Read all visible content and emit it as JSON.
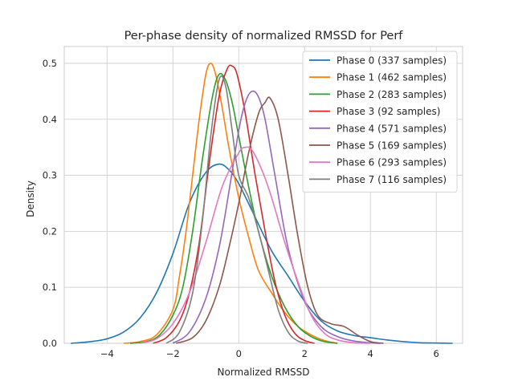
{
  "chart_data": {
    "type": "line",
    "title": "Per-phase density of normalized RMSSD for Perf",
    "xlabel": "Normalized RMSSD",
    "ylabel": "Density",
    "xlim": [
      -5.3,
      6.8
    ],
    "ylim": [
      0,
      0.53
    ],
    "xticks": [
      -4,
      -2,
      0,
      2,
      4,
      6
    ],
    "xtick_labels": [
      "−4",
      "−2",
      "0",
      "2",
      "4",
      "6"
    ],
    "yticks": [
      0.0,
      0.1,
      0.2,
      0.3,
      0.4,
      0.5
    ],
    "ytick_labels": [
      "0.0",
      "0.1",
      "0.2",
      "0.3",
      "0.4",
      "0.5"
    ],
    "grid": true,
    "legend_position": "top-right",
    "series": [
      {
        "name": "Phase 0 (337 samples)",
        "color": "#1f77b4",
        "x": [
          -5.1,
          -4.5,
          -4.0,
          -3.5,
          -3.0,
          -2.5,
          -2.0,
          -1.5,
          -1.0,
          -0.6,
          -0.3,
          0.0,
          0.5,
          1.0,
          1.5,
          2.0,
          2.5,
          3.0,
          3.5,
          4.0,
          4.5,
          5.0,
          5.5,
          6.0,
          6.5
        ],
        "y": [
          0.0,
          0.003,
          0.008,
          0.02,
          0.045,
          0.09,
          0.16,
          0.25,
          0.305,
          0.32,
          0.31,
          0.285,
          0.225,
          0.165,
          0.12,
          0.075,
          0.04,
          0.022,
          0.014,
          0.01,
          0.006,
          0.003,
          0.001,
          0.0005,
          0.0
        ]
      },
      {
        "name": "Phase 1 (462 samples)",
        "color": "#ff7f0e",
        "x": [
          -3.5,
          -3.0,
          -2.5,
          -2.0,
          -1.8,
          -1.6,
          -1.4,
          -1.2,
          -1.0,
          -0.85,
          -0.7,
          -0.5,
          -0.3,
          0.0,
          0.3,
          0.6,
          1.0,
          1.4,
          1.8,
          2.2,
          2.6,
          3.0
        ],
        "y": [
          0.0,
          0.003,
          0.015,
          0.06,
          0.12,
          0.2,
          0.3,
          0.4,
          0.48,
          0.5,
          0.48,
          0.42,
          0.35,
          0.26,
          0.19,
          0.13,
          0.09,
          0.055,
          0.03,
          0.015,
          0.005,
          0.0
        ]
      },
      {
        "name": "Phase 2 (283 samples)",
        "color": "#2ca02c",
        "x": [
          -3.3,
          -2.8,
          -2.4,
          -2.0,
          -1.7,
          -1.4,
          -1.1,
          -0.8,
          -0.6,
          -0.4,
          -0.2,
          0.0,
          0.3,
          0.6,
          1.0,
          1.4,
          1.8,
          2.2,
          2.6,
          3.0
        ],
        "y": [
          0.0,
          0.003,
          0.015,
          0.05,
          0.1,
          0.2,
          0.33,
          0.44,
          0.48,
          0.47,
          0.43,
          0.37,
          0.28,
          0.2,
          0.12,
          0.065,
          0.03,
          0.012,
          0.003,
          0.0
        ]
      },
      {
        "name": "Phase 3 (92 samples)",
        "color": "#d62728",
        "x": [
          -2.6,
          -2.2,
          -1.8,
          -1.5,
          -1.2,
          -0.9,
          -0.6,
          -0.35,
          -0.2,
          -0.05,
          0.2,
          0.5,
          0.8,
          1.1,
          1.4,
          1.7,
          2.0,
          2.3
        ],
        "y": [
          0.0,
          0.01,
          0.04,
          0.09,
          0.18,
          0.32,
          0.44,
          0.49,
          0.495,
          0.48,
          0.41,
          0.3,
          0.2,
          0.11,
          0.05,
          0.018,
          0.005,
          0.0
        ]
      },
      {
        "name": "Phase 4 (571 samples)",
        "color": "#9467bd",
        "x": [
          -2.0,
          -1.5,
          -1.0,
          -0.6,
          -0.3,
          0.0,
          0.2,
          0.4,
          0.6,
          0.8,
          1.1,
          1.5,
          2.0,
          2.5,
          3.0,
          3.5,
          4.0,
          4.3
        ],
        "y": [
          0.0,
          0.02,
          0.08,
          0.17,
          0.27,
          0.38,
          0.43,
          0.45,
          0.44,
          0.4,
          0.3,
          0.17,
          0.075,
          0.03,
          0.012,
          0.004,
          0.001,
          0.0
        ]
      },
      {
        "name": "Phase 5 (169 samples)",
        "color": "#8c564b",
        "x": [
          -1.9,
          -1.4,
          -1.0,
          -0.6,
          -0.3,
          0.0,
          0.3,
          0.6,
          0.8,
          0.95,
          1.2,
          1.5,
          1.8,
          2.1,
          2.4,
          2.8,
          3.2,
          3.6,
          4.0,
          4.4
        ],
        "y": [
          0.0,
          0.01,
          0.04,
          0.1,
          0.17,
          0.25,
          0.34,
          0.41,
          0.43,
          0.438,
          0.4,
          0.3,
          0.19,
          0.1,
          0.05,
          0.035,
          0.03,
          0.015,
          0.003,
          0.0
        ]
      },
      {
        "name": "Phase 6 (293 samples)",
        "color": "#e377c2",
        "x": [
          -3.0,
          -2.5,
          -2.0,
          -1.5,
          -1.0,
          -0.5,
          0.0,
          0.2,
          0.4,
          0.7,
          1.0,
          1.4,
          1.8,
          2.2,
          2.6,
          3.0,
          3.5,
          4.0
        ],
        "y": [
          0.0,
          0.008,
          0.035,
          0.09,
          0.18,
          0.28,
          0.34,
          0.35,
          0.345,
          0.31,
          0.26,
          0.18,
          0.11,
          0.05,
          0.018,
          0.006,
          0.001,
          0.0
        ]
      },
      {
        "name": "Phase 7 (116 samples)",
        "color": "#7f7f7f",
        "x": [
          -2.2,
          -1.8,
          -1.4,
          -1.1,
          -0.85,
          -0.6,
          -0.4,
          -0.2,
          0.0,
          0.3,
          0.6,
          0.9,
          1.2,
          1.5,
          1.8,
          2.1
        ],
        "y": [
          0.0,
          0.02,
          0.09,
          0.22,
          0.37,
          0.47,
          0.46,
          0.38,
          0.3,
          0.26,
          0.2,
          0.13,
          0.06,
          0.02,
          0.004,
          0.0
        ]
      }
    ]
  }
}
